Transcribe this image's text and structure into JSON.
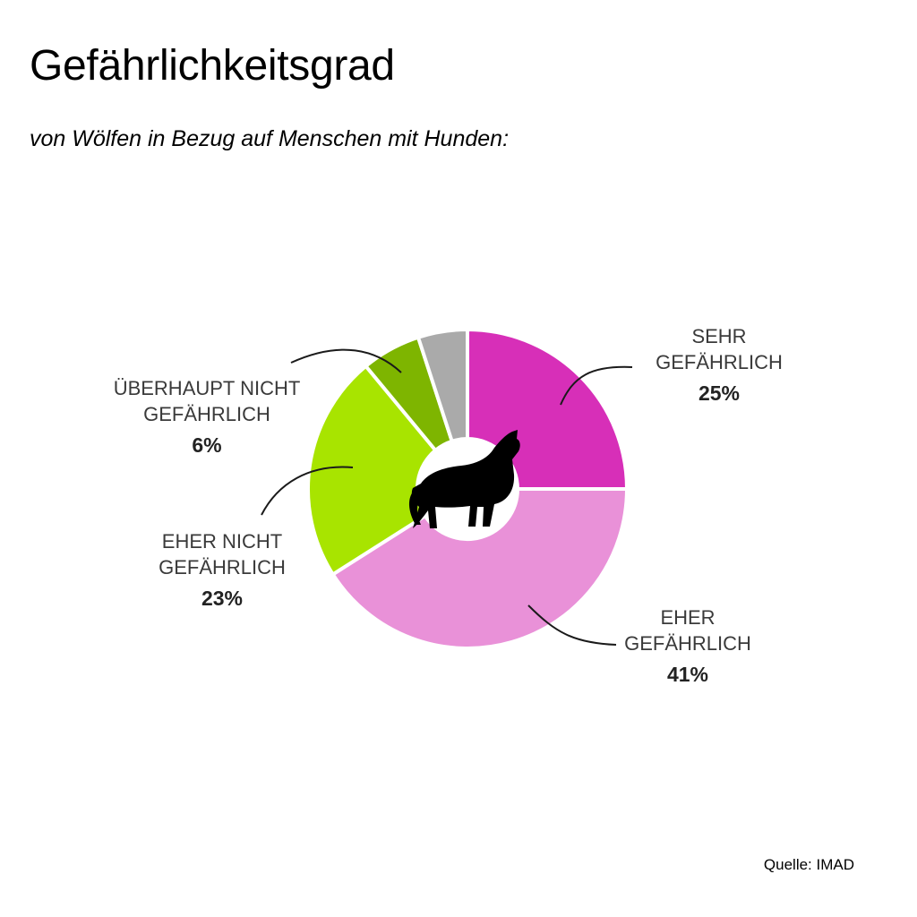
{
  "title": "Gefährlichkeitsgrad",
  "subtitle": "von Wölfen in Bezug auf Menschen mit Hunden:",
  "source": "Quelle: IMAD",
  "chart_data": {
    "type": "pie",
    "style": "donut",
    "center_icon": "howling-wolf-icon",
    "slices": [
      {
        "label": [
          "SEHR",
          "GEFÄHRLICH"
        ],
        "value": 25,
        "value_label": "25%",
        "color": "#d72fb8"
      },
      {
        "label": [
          "EHER",
          "GEFÄHRLICH"
        ],
        "value": 41,
        "value_label": "41%",
        "color": "#e991d8"
      },
      {
        "label": [
          "EHER NICHT",
          "GEFÄHRLICH"
        ],
        "value": 23,
        "value_label": "23%",
        "color": "#a8e400"
      },
      {
        "label": [
          "ÜBERHAUPT NICHT",
          "GEFÄHRLICH"
        ],
        "value": 6,
        "value_label": "6%",
        "color": "#7eb500"
      },
      {
        "label": [],
        "value": 5,
        "value_label": "",
        "color": "#aaaaaa"
      }
    ]
  }
}
